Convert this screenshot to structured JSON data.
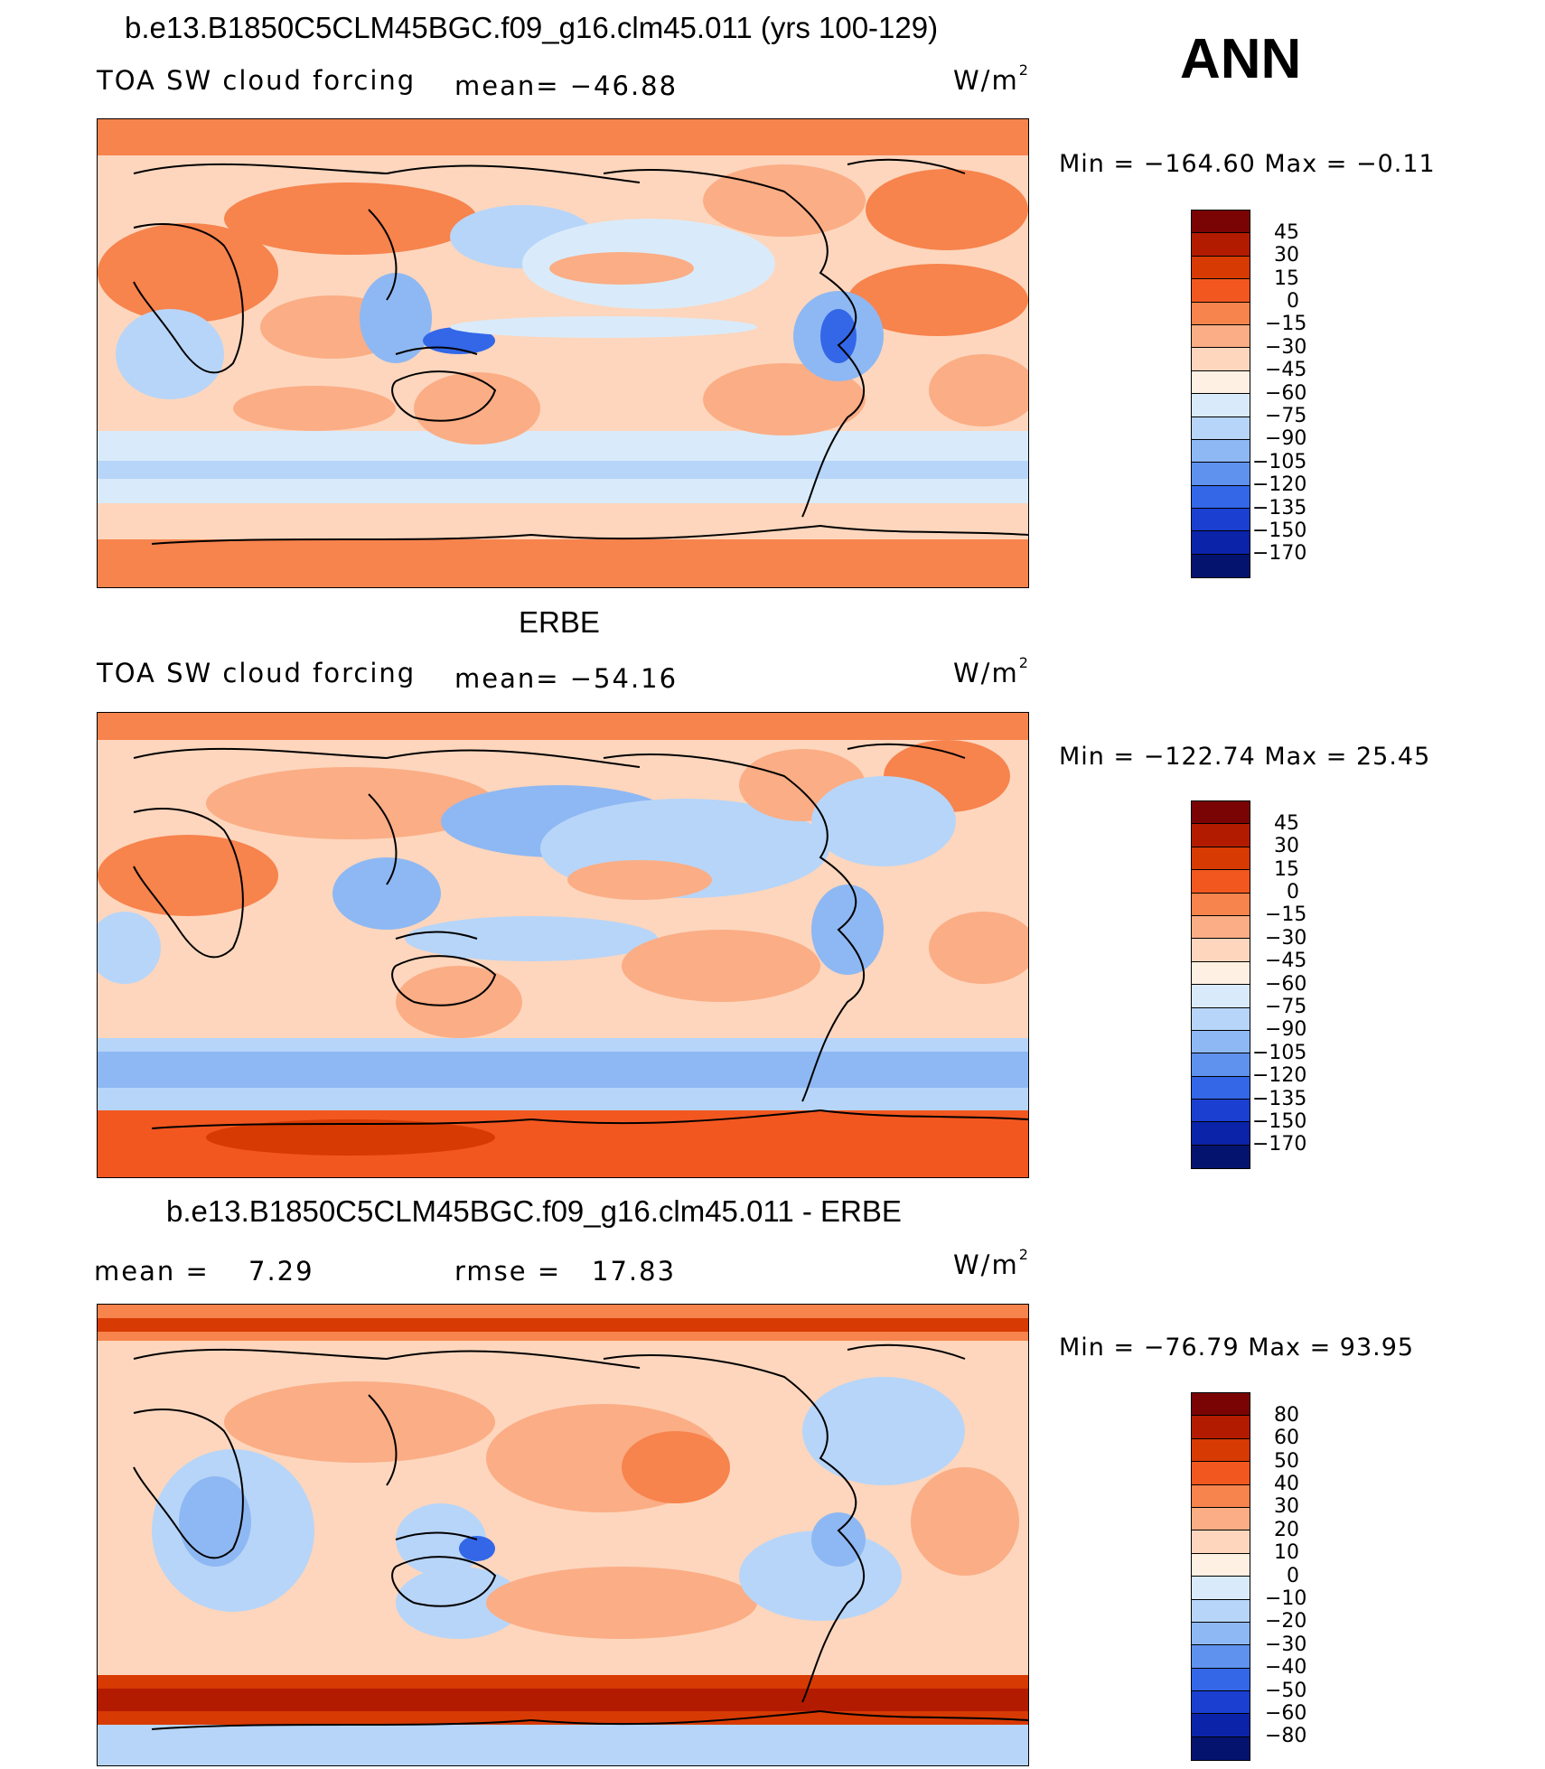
{
  "season": "ANN",
  "units": "W/m",
  "units_exp": "2",
  "panels": [
    {
      "title": "b.e13.B1850C5CLM45BGC.f09_g16.clm45.011 (yrs 100-129)",
      "variable": "TOA SW cloud forcing",
      "stat": "mean=  −46.88",
      "minmax": "Min  =  −164.60  Max  =    −0.11",
      "levels": [
        "45",
        "30",
        "15",
        "0",
        "−15",
        "−30",
        "−45",
        "−60",
        "−75",
        "−90",
        "−105",
        "−120",
        "−135",
        "−150",
        "−170"
      ]
    },
    {
      "title": "ERBE",
      "variable": "TOA SW cloud forcing",
      "stat": "mean=  −54.16",
      "minmax": "Min  =  −122.74  Max  =    25.45",
      "levels": [
        "45",
        "30",
        "15",
        "0",
        "−15",
        "−30",
        "−45",
        "−60",
        "−75",
        "−90",
        "−105",
        "−120",
        "−135",
        "−150",
        "−170"
      ]
    },
    {
      "title": "b.e13.B1850C5CLM45BGC.f09_g16.clm45.011 - ERBE",
      "mean_label": "mean  =",
      "mean_value": "7.29",
      "rmse_label": "rmse  =",
      "rmse_value": "17.83",
      "minmax": "Min  =  −76.79  Max  =    93.95",
      "levels": [
        "80",
        "60",
        "50",
        "40",
        "30",
        "20",
        "10",
        "0",
        "−10",
        "−20",
        "−30",
        "−40",
        "−50",
        "−60",
        "−80"
      ]
    }
  ],
  "colors": [
    "#7a0403",
    "#b31b00",
    "#d73a03",
    "#f25720",
    "#f7834d",
    "#fbad85",
    "#fdd6bd",
    "#fef0e2",
    "#d9ebfa",
    "#b7d5f8",
    "#8eb8f3",
    "#5f91ee",
    "#3367e8",
    "#1a3fd1",
    "#0b23a8",
    "#04146e"
  ]
}
